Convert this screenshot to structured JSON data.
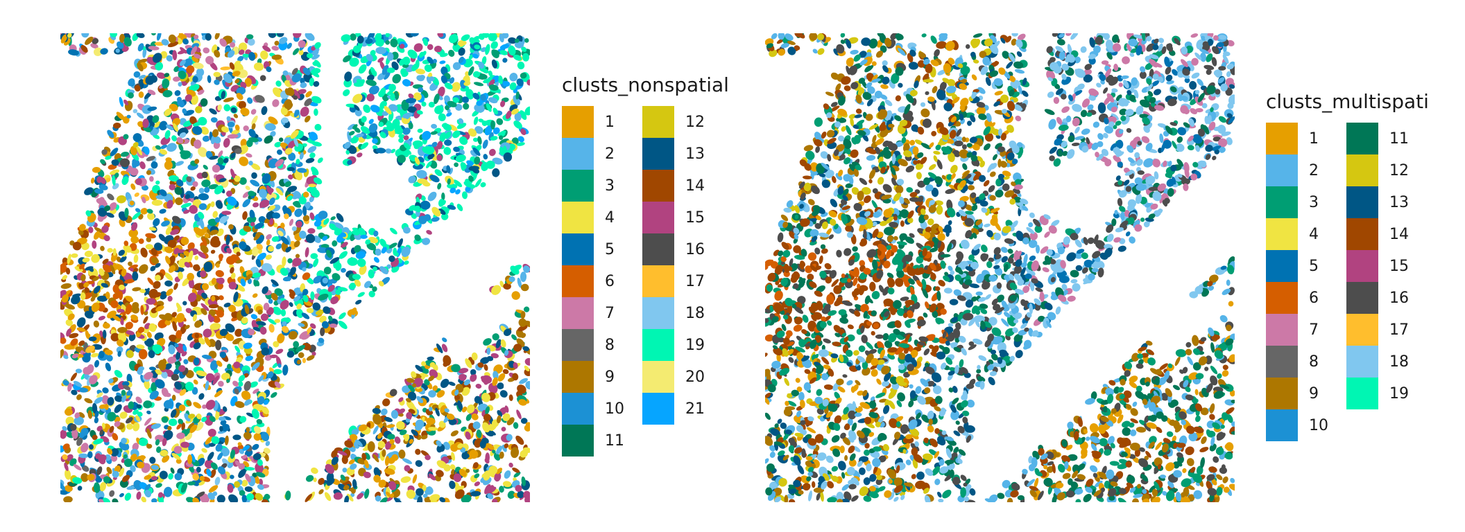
{
  "chart_data": [
    {
      "type": "scatter",
      "title": "",
      "xlabel": "",
      "ylabel": "",
      "grid": false,
      "legend_placement": "right",
      "legend_title": "clusts_nonspatial",
      "legend_columns": 2,
      "series": [
        {
          "name": "1",
          "color": "#E69F00"
        },
        {
          "name": "2",
          "color": "#56B4E9"
        },
        {
          "name": "3",
          "color": "#009E73"
        },
        {
          "name": "4",
          "color": "#F0E442"
        },
        {
          "name": "5",
          "color": "#0072B2"
        },
        {
          "name": "6",
          "color": "#D55E00"
        },
        {
          "name": "7",
          "color": "#CC79A7"
        },
        {
          "name": "8",
          "color": "#666666"
        },
        {
          "name": "9",
          "color": "#AD7700"
        },
        {
          "name": "10",
          "color": "#1C91D4"
        },
        {
          "name": "11",
          "color": "#007756"
        },
        {
          "name": "12",
          "color": "#D5C711"
        },
        {
          "name": "13",
          "color": "#005685"
        },
        {
          "name": "14",
          "color": "#A04700"
        },
        {
          "name": "15",
          "color": "#B14380"
        },
        {
          "name": "16",
          "color": "#4D4D4D"
        },
        {
          "name": "17",
          "color": "#FFBE2D"
        },
        {
          "name": "18",
          "color": "#80C7EF"
        },
        {
          "name": "19",
          "color": "#00F6B3"
        },
        {
          "name": "20",
          "color": "#F4EB71"
        },
        {
          "name": "21",
          "color": "#06A5FF"
        }
      ]
    },
    {
      "type": "scatter",
      "title": "",
      "xlabel": "",
      "ylabel": "",
      "grid": false,
      "legend_placement": "right",
      "legend_title": "clusts_multispati",
      "legend_columns": 2,
      "series": [
        {
          "name": "1",
          "color": "#E69F00"
        },
        {
          "name": "2",
          "color": "#56B4E9"
        },
        {
          "name": "3",
          "color": "#009E73"
        },
        {
          "name": "4",
          "color": "#F0E442"
        },
        {
          "name": "5",
          "color": "#0072B2"
        },
        {
          "name": "6",
          "color": "#D55E00"
        },
        {
          "name": "7",
          "color": "#CC79A7"
        },
        {
          "name": "8",
          "color": "#666666"
        },
        {
          "name": "9",
          "color": "#AD7700"
        },
        {
          "name": "10",
          "color": "#1C91D4"
        },
        {
          "name": "11",
          "color": "#007756"
        },
        {
          "name": "12",
          "color": "#D5C711"
        },
        {
          "name": "13",
          "color": "#005685"
        },
        {
          "name": "14",
          "color": "#A04700"
        },
        {
          "name": "15",
          "color": "#B14380"
        },
        {
          "name": "16",
          "color": "#4D4D4D"
        },
        {
          "name": "17",
          "color": "#FFBE2D"
        },
        {
          "name": "18",
          "color": "#80C7EF"
        },
        {
          "name": "19",
          "color": "#00F6B3"
        }
      ]
    }
  ]
}
